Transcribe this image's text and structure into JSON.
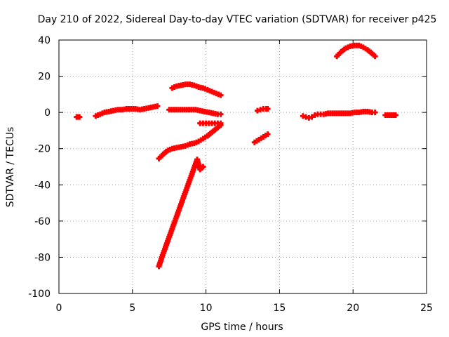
{
  "chart_data": {
    "type": "scatter",
    "title": "Day 210 of 2022, Sidereal Day-to-day VTEC variation (SDTVAR) for receiver p425",
    "xlabel": "GPS time / hours",
    "ylabel": "SDTVAR / TECUs",
    "xlim": [
      0,
      25
    ],
    "ylim": [
      -100,
      40
    ],
    "xticks": [
      "0",
      "5",
      "10",
      "15",
      "20",
      "25"
    ],
    "yticks": [
      "-100",
      "-80",
      "-60",
      "-40",
      "-20",
      "0",
      "20",
      "40"
    ],
    "xtick_values": [
      0,
      5,
      10,
      15,
      20,
      25
    ],
    "ytick_values": [
      -100,
      -80,
      -60,
      -40,
      -20,
      0,
      20,
      40
    ],
    "grid": true,
    "marker": "+",
    "color": "#ff0000",
    "segments": [
      {
        "x": [
          1.2,
          1.3,
          1.4
        ],
        "y": [
          -2.5,
          -2.5,
          -2.5
        ]
      },
      {
        "x": [
          2.5,
          2.8,
          3.1,
          3.4,
          3.7,
          4.0,
          4.3,
          4.6,
          4.9,
          5.2,
          5.5,
          5.8,
          6.1,
          6.4,
          6.7
        ],
        "y": [
          -2,
          -1,
          0,
          0.5,
          1,
          1.5,
          1.5,
          2,
          2,
          2,
          1.5,
          2,
          2.5,
          3,
          3.5
        ]
      },
      {
        "x": [
          7.5,
          7.8,
          8.1,
          8.4,
          8.7,
          9.0,
          9.3,
          9.6,
          9.9,
          10.2,
          10.5,
          10.8,
          11.0
        ],
        "y": [
          1.5,
          1.5,
          1.5,
          1.5,
          1.5,
          1.5,
          1.5,
          1.0,
          0.5,
          0,
          -0.5,
          -1,
          -1
        ]
      },
      {
        "x": [
          7.7,
          8.0,
          8.3,
          8.6,
          8.9,
          9.2,
          9.5,
          9.8,
          10.1,
          10.4,
          10.7,
          11.0
        ],
        "y": [
          13.5,
          14.5,
          15,
          15.5,
          15.5,
          15,
          14,
          13.5,
          12.5,
          11.5,
          10.5,
          9.5
        ]
      },
      {
        "x": [
          9.6,
          9.8,
          10.0,
          10.2,
          10.4,
          10.6,
          10.8,
          11.0
        ],
        "y": [
          -6,
          -6,
          -6,
          -6,
          -6,
          -6,
          -6,
          -6
        ]
      },
      {
        "x": [
          6.8,
          7.1,
          7.4,
          7.7,
          8.0,
          8.3,
          8.6,
          8.9,
          9.2,
          9.5,
          9.8,
          10.1,
          10.4,
          10.7,
          11.0
        ],
        "y": [
          -25.5,
          -23,
          -21,
          -20,
          -19.5,
          -19,
          -18.5,
          -17.5,
          -17,
          -16,
          -14.5,
          -13,
          -11,
          -9,
          -7
        ]
      },
      {
        "x": [
          6.8,
          7.0,
          7.2,
          7.4,
          7.6,
          7.8,
          8.0,
          8.2,
          8.4,
          8.6,
          8.8,
          9.0,
          9.2,
          9.4,
          9.6,
          9.8
        ],
        "y": [
          -85,
          -80,
          -75.5,
          -71,
          -66.5,
          -62,
          -57.5,
          -53,
          -48.5,
          -44,
          -39.5,
          -35,
          -30.5,
          -26,
          -31.5,
          -30
        ]
      },
      {
        "x": [
          13.3,
          13.6,
          13.9,
          14.2
        ],
        "y": [
          -16.5,
          -15,
          -13.5,
          -12
        ]
      },
      {
        "x": [
          13.5,
          13.7,
          13.9,
          14.1,
          14.2
        ],
        "y": [
          1,
          1.5,
          2,
          2,
          2
        ]
      },
      {
        "x": [
          16.6,
          16.8,
          17.0,
          17.2,
          17.4,
          17.6,
          17.8,
          18.0,
          18.3,
          18.6,
          18.9,
          19.2,
          19.5,
          19.8,
          20.1,
          20.4,
          20.7,
          21.0,
          21.3,
          21.5
        ],
        "y": [
          -2,
          -2.5,
          -3,
          -2.5,
          -1.5,
          -1,
          -1,
          -1,
          -0.5,
          -0.5,
          -0.5,
          -0.5,
          -0.5,
          -0.5,
          0,
          0,
          0.5,
          0.5,
          0,
          0
        ]
      },
      {
        "x": [
          22.2,
          22.9
        ],
        "y": [
          -1.5,
          -1.5
        ]
      },
      {
        "x": [
          18.9,
          19.2,
          19.5,
          19.8,
          20.1,
          20.4,
          20.7,
          21.0,
          21.3,
          21.5
        ],
        "y": [
          31,
          33.5,
          35.5,
          36.5,
          37,
          37,
          36,
          34.5,
          32.5,
          31
        ]
      }
    ]
  }
}
